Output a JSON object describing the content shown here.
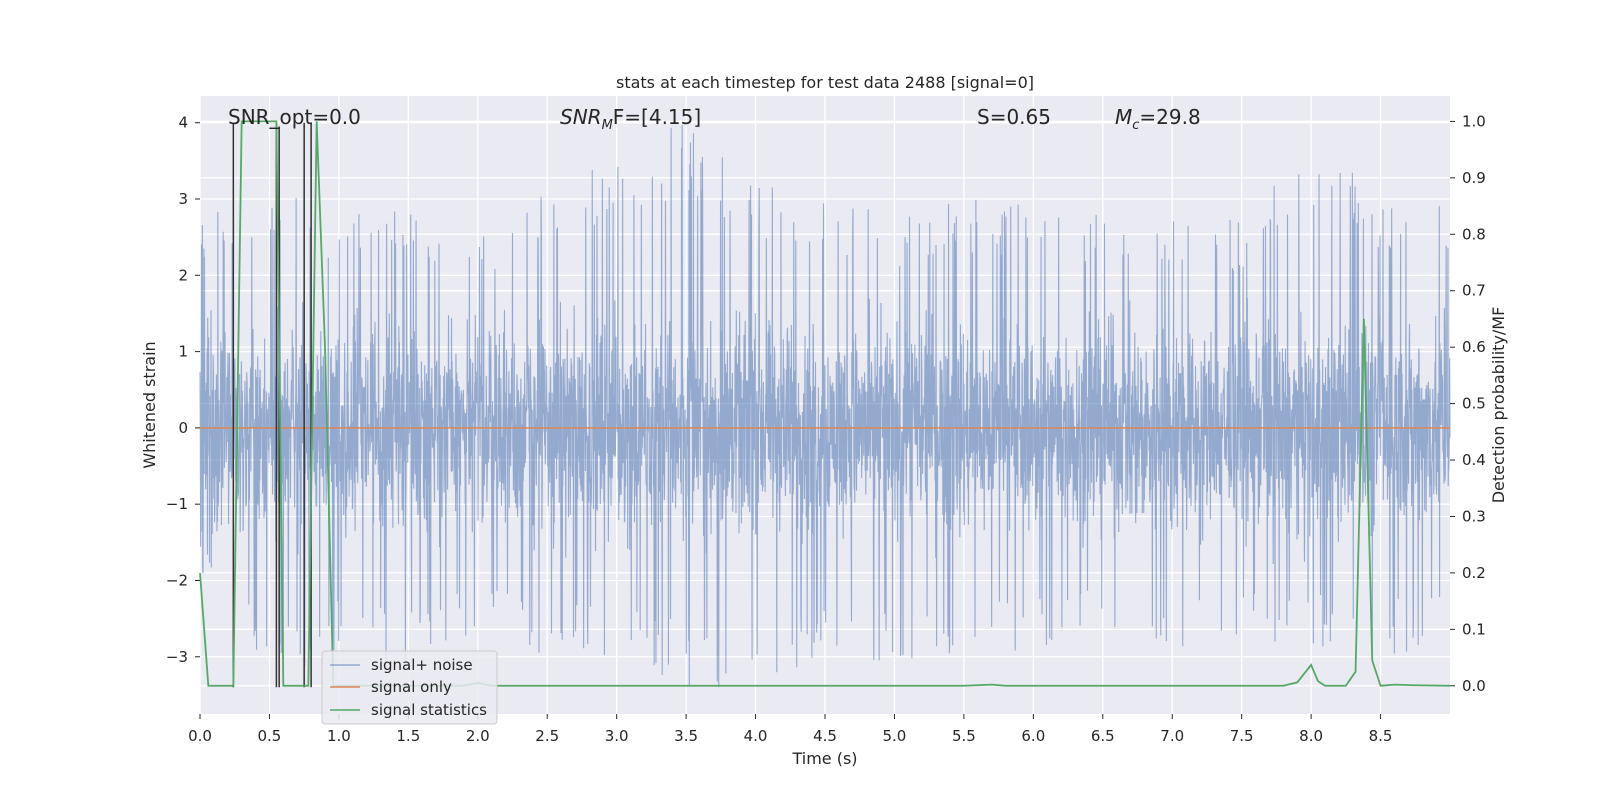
{
  "chart_data": {
    "type": "line",
    "title": "stats at each timestep for test data 2488 [signal=0]",
    "xlabel": "Time (s)",
    "ylabel_left": "Whitened strain",
    "ylabel_right": "Detection probability/MF",
    "xlim": [
      0,
      9.0
    ],
    "ylim_left": [
      -3.75,
      4.35
    ],
    "ylim_right": [
      -0.05,
      1.045
    ],
    "x_ticks": [
      0.0,
      0.5,
      1.0,
      1.5,
      2.0,
      2.5,
      3.0,
      3.5,
      4.0,
      4.5,
      5.0,
      5.5,
      6.0,
      6.5,
      7.0,
      7.5,
      8.0,
      8.5
    ],
    "x_tick_labels": [
      "0.0",
      "0.5",
      "1.0",
      "1.5",
      "2.0",
      "2.5",
      "3.0",
      "3.5",
      "4.0",
      "4.5",
      "5.0",
      "5.5",
      "6.0",
      "6.5",
      "7.0",
      "7.5",
      "8.0",
      "8.5"
    ],
    "y_left_ticks": [
      -3,
      -2,
      -1,
      0,
      1,
      2,
      3,
      4
    ],
    "y_left_tick_labels": [
      "−3",
      "−2",
      "−1",
      "0",
      "1",
      "2",
      "3",
      "4"
    ],
    "y_right_ticks": [
      0.0,
      0.1,
      0.2,
      0.3,
      0.4,
      0.5,
      0.6,
      0.7,
      0.8,
      0.9,
      1.0
    ],
    "y_right_tick_labels": [
      "0.0",
      "0.1",
      "0.2",
      "0.3",
      "0.4",
      "0.5",
      "0.6",
      "0.7",
      "0.8",
      "0.9",
      "1.0"
    ],
    "grid": true,
    "legend_position": "lower-left",
    "annotations": {
      "snr_opt": "SNR_opt=0.0",
      "snr_mf_base": "SNR",
      "snr_mf_sub": "M",
      "snr_mf_rest": "F=[4.15]",
      "s": "S=0.65",
      "mc_base": "M",
      "mc_sub": "c",
      "mc_rest": "=29.8"
    },
    "series": [
      {
        "name": "signal+ noise",
        "axis": "left",
        "color": "#4c72b0",
        "note_amplitude_envelope": {
          "x": [
            0.0,
            0.5,
            1.0,
            1.5,
            2.0,
            2.5,
            3.0,
            3.5,
            4.0,
            4.5,
            5.0,
            5.5,
            6.0,
            6.5,
            7.0,
            7.5,
            8.0,
            8.5,
            9.0
          ],
          "max": [
            2.9,
            3.3,
            2.8,
            2.9,
            2.6,
            3.1,
            3.7,
            4.0,
            3.2,
            3.1,
            2.8,
            3.0,
            3.0,
            2.8,
            2.9,
            2.7,
            3.9,
            3.0,
            3.0
          ],
          "min": [
            -2.0,
            -3.4,
            -3.0,
            -3.2,
            -2.7,
            -3.0,
            -3.0,
            -3.4,
            -3.4,
            -3.0,
            -3.2,
            -3.0,
            -2.9,
            -2.8,
            -3.0,
            -2.9,
            -2.9,
            -3.0,
            -2.9
          ]
        }
      },
      {
        "name": "signal only",
        "axis": "left",
        "color": "#dd8452",
        "x": [
          0.0,
          9.0
        ],
        "y": [
          0.0,
          0.0
        ]
      },
      {
        "name": "signal statistics",
        "axis": "right",
        "color": "#55a868",
        "x": [
          0.0,
          0.06,
          0.12,
          0.18,
          0.24,
          0.3,
          0.36,
          0.42,
          0.48,
          0.55,
          0.6,
          0.66,
          0.72,
          0.78,
          0.84,
          0.9,
          0.96,
          1.0,
          1.5,
          1.9,
          2.0,
          2.1,
          2.5,
          3.0,
          3.5,
          4.0,
          4.5,
          5.0,
          5.5,
          5.7,
          5.8,
          6.0,
          6.5,
          7.0,
          7.5,
          7.8,
          7.9,
          8.0,
          8.05,
          8.1,
          8.25,
          8.32,
          8.38,
          8.44,
          8.5,
          8.6,
          8.75,
          9.0
        ],
        "y": [
          0.2,
          0.0,
          0.0,
          0.0,
          0.0,
          1.0,
          1.0,
          1.0,
          1.0,
          1.0,
          0.0,
          0.0,
          0.0,
          0.0,
          1.0,
          0.6,
          0.0,
          0.0,
          0.0,
          0.0,
          0.005,
          0.0,
          0.0,
          0.0,
          0.0,
          0.0,
          0.0,
          0.0,
          0.0,
          0.002,
          0.0,
          0.0,
          0.0,
          0.0,
          0.0,
          0.0,
          0.006,
          0.037,
          0.008,
          0.0,
          0.0,
          0.025,
          0.65,
          0.045,
          0.0,
          0.002,
          0.001,
          0.0
        ]
      }
    ],
    "black_markers": {
      "color": "#333333",
      "x": [
        0.24,
        0.55,
        0.57,
        0.75,
        0.8
      ],
      "y_top": [
        4.0,
        4.0,
        3.95,
        4.0,
        4.0
      ],
      "y_bottom": [
        -3.4,
        -3.4,
        -3.4,
        -3.4,
        -3.4
      ]
    }
  }
}
